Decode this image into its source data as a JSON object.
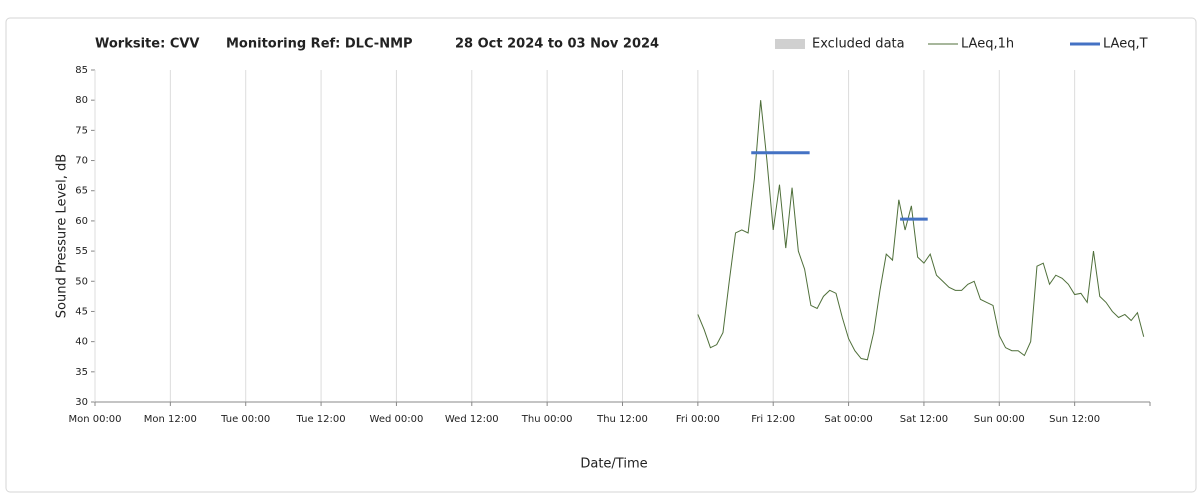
{
  "chart_data": {
    "type": "line",
    "worksite": "Worksite: CVV",
    "monitoring_ref": "Monitoring Ref: DLC-NMP",
    "period": "28 Oct 2024 to 03 Nov 2024",
    "x_label": "Date/Time",
    "y_label": "Sound Pressure Level, dB",
    "xlim": [
      0,
      168
    ],
    "xticks": [
      {
        "value": 0,
        "label": "Mon 00:00"
      },
      {
        "value": 12,
        "label": "Mon 12:00"
      },
      {
        "value": 24,
        "label": "Tue 00:00"
      },
      {
        "value": 36,
        "label": "Tue 12:00"
      },
      {
        "value": 48,
        "label": "Wed 00:00"
      },
      {
        "value": 60,
        "label": "Wed 12:00"
      },
      {
        "value": 72,
        "label": "Thu 00:00"
      },
      {
        "value": 84,
        "label": "Thu 12:00"
      },
      {
        "value": 96,
        "label": "Fri 00:00"
      },
      {
        "value": 108,
        "label": "Fri 12:00"
      },
      {
        "value": 120,
        "label": "Sat 00:00"
      },
      {
        "value": 132,
        "label": "Sat 12:00"
      },
      {
        "value": 144,
        "label": "Sun 00:00"
      },
      {
        "value": 156,
        "label": "Sun 12:00"
      }
    ],
    "ylim": [
      30,
      85
    ],
    "yticks": [
      30,
      35,
      40,
      45,
      50,
      55,
      60,
      65,
      70,
      75,
      80,
      85
    ],
    "grid": "x",
    "series": [
      {
        "name": "Excluded data",
        "color": "#d0d0d0",
        "legend_marker": "box",
        "x": [],
        "values": []
      },
      {
        "name": "LAeq,1h",
        "color": "#4f6f3a",
        "legend_marker": "line",
        "width": 1,
        "x": [
          96,
          97,
          98,
          99,
          100,
          101,
          102,
          103,
          104,
          105,
          106,
          107,
          108,
          109,
          110,
          111,
          112,
          113,
          114,
          115,
          116,
          117,
          118,
          119,
          120,
          121,
          122,
          123,
          124,
          125,
          126,
          127,
          128,
          129,
          130,
          131,
          132,
          133,
          134,
          135,
          136,
          137,
          138,
          139,
          140,
          141,
          142,
          143,
          144,
          145,
          146,
          147,
          148,
          149,
          150,
          151,
          152,
          153,
          154,
          155,
          156,
          157,
          158,
          159,
          160,
          161,
          162,
          163,
          164,
          165,
          166,
          167
        ],
        "values": [
          44.5,
          42,
          39,
          39.5,
          41.5,
          50,
          58,
          58.5,
          58,
          67,
          80,
          70,
          58.5,
          66,
          55.5,
          65.5,
          55,
          52,
          46,
          45.5,
          47.5,
          48.5,
          48,
          44,
          40.5,
          38.5,
          37.2,
          37,
          41.5,
          48.5,
          54.5,
          53.5,
          63.5,
          58.5,
          62.5,
          54,
          53,
          54.5,
          51,
          50,
          49,
          48.5,
          48.5,
          49.5,
          50,
          47,
          46.5,
          46,
          41,
          39,
          38.5,
          38.5,
          37.7,
          40,
          52.5,
          53,
          49.5,
          51,
          50.5,
          49.5,
          47.8,
          48,
          46.5,
          55,
          47.5,
          46.5,
          45,
          44,
          44.5,
          43.5,
          44.8,
          40.8
        ]
      },
      {
        "name": "LAeq,T",
        "color": "#4472c4",
        "legend_marker": "line",
        "width": 3,
        "x": [
          104.5,
          113.8,
          121,
          128.2,
          132.6
        ],
        "values": [
          71.3,
          71.3,
          null,
          60.3,
          60.3
        ]
      }
    ]
  }
}
